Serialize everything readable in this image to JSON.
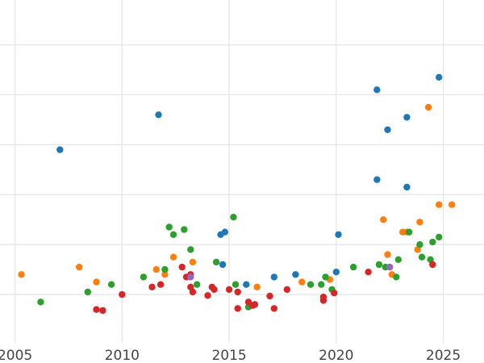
{
  "chart_data": {
    "type": "scatter",
    "title": "",
    "xlabel": "",
    "ylabel": "",
    "xlim": [
      2004.3,
      2026.9
    ],
    "ylim": [
      0,
      7
    ],
    "x_ticks": [
      2005,
      2010,
      2015,
      2020,
      2025
    ],
    "y_gridlines": [
      1,
      2,
      3,
      4,
      5,
      6,
      7
    ],
    "y_tick_labels_visible": false,
    "grid": true,
    "legend": "none",
    "series": [
      {
        "color": "#1f77b4",
        "points": [
          [
            2007.1,
            3.9
          ],
          [
            2011.7,
            4.6
          ],
          [
            2014.6,
            2.2
          ],
          [
            2014.8,
            2.25
          ],
          [
            2014.7,
            1.6
          ],
          [
            2015.8,
            1.2
          ],
          [
            2017.1,
            1.35
          ],
          [
            2018.1,
            1.4
          ],
          [
            2020.0,
            1.45
          ],
          [
            2020.1,
            2.2
          ],
          [
            2021.9,
            3.3
          ],
          [
            2021.9,
            5.1
          ],
          [
            2022.4,
            4.3
          ],
          [
            2023.3,
            3.15
          ],
          [
            2023.3,
            4.55
          ],
          [
            2024.8,
            5.35
          ]
        ]
      },
      {
        "color": "#ff7f0e",
        "points": [
          [
            2005.3,
            1.4
          ],
          [
            2008.0,
            1.55
          ],
          [
            2008.8,
            1.25
          ],
          [
            2011.6,
            1.5
          ],
          [
            2012.0,
            1.4
          ],
          [
            2012.4,
            1.75
          ],
          [
            2013.3,
            1.65
          ],
          [
            2016.3,
            1.15
          ],
          [
            2018.4,
            1.25
          ],
          [
            2019.7,
            1.3
          ],
          [
            2022.2,
            2.5
          ],
          [
            2022.4,
            1.8
          ],
          [
            2022.6,
            1.4
          ],
          [
            2023.1,
            2.25
          ],
          [
            2023.3,
            2.25
          ],
          [
            2023.8,
            1.9
          ],
          [
            2023.9,
            2.45
          ],
          [
            2024.3,
            4.75
          ],
          [
            2024.8,
            2.8
          ],
          [
            2025.4,
            2.8
          ]
        ]
      },
      {
        "color": "#2ca02c",
        "points": [
          [
            2006.2,
            0.85
          ],
          [
            2008.4,
            1.05
          ],
          [
            2009.5,
            1.2
          ],
          [
            2011.0,
            1.35
          ],
          [
            2012.0,
            1.5
          ],
          [
            2012.2,
            2.35
          ],
          [
            2012.4,
            2.2
          ],
          [
            2012.9,
            2.3
          ],
          [
            2013.2,
            1.9
          ],
          [
            2013.5,
            1.2
          ],
          [
            2014.4,
            1.65
          ],
          [
            2015.2,
            2.55
          ],
          [
            2015.3,
            1.2
          ],
          [
            2015.9,
            0.75
          ],
          [
            2018.8,
            1.2
          ],
          [
            2019.3,
            1.2
          ],
          [
            2019.5,
            1.35
          ],
          [
            2019.8,
            1.1
          ],
          [
            2020.8,
            1.55
          ],
          [
            2022.0,
            1.6
          ],
          [
            2022.3,
            1.55
          ],
          [
            2022.8,
            1.35
          ],
          [
            2022.9,
            1.7
          ],
          [
            2023.4,
            2.25
          ],
          [
            2023.9,
            2.0
          ],
          [
            2024.0,
            1.75
          ],
          [
            2024.4,
            1.7
          ],
          [
            2024.5,
            2.05
          ],
          [
            2024.8,
            2.15
          ]
        ]
      },
      {
        "color": "#d62728",
        "points": [
          [
            2008.8,
            0.7
          ],
          [
            2009.1,
            0.68
          ],
          [
            2010.0,
            1.0
          ],
          [
            2011.4,
            1.15
          ],
          [
            2011.8,
            1.2
          ],
          [
            2012.8,
            1.55
          ],
          [
            2013.0,
            1.35
          ],
          [
            2013.2,
            1.4
          ],
          [
            2013.2,
            1.15
          ],
          [
            2013.3,
            1.05
          ],
          [
            2014.0,
            0.98
          ],
          [
            2014.2,
            1.15
          ],
          [
            2014.3,
            1.1
          ],
          [
            2015.0,
            1.1
          ],
          [
            2015.4,
            1.05
          ],
          [
            2015.4,
            0.72
          ],
          [
            2015.9,
            0.85
          ],
          [
            2016.1,
            0.78
          ],
          [
            2016.2,
            0.8
          ],
          [
            2016.9,
            0.97
          ],
          [
            2017.1,
            0.72
          ],
          [
            2017.7,
            1.1
          ],
          [
            2019.4,
            0.95
          ],
          [
            2019.4,
            0.88
          ],
          [
            2019.9,
            1.03
          ],
          [
            2021.5,
            1.45
          ],
          [
            2024.5,
            1.6
          ]
        ]
      },
      {
        "color": "#9467bd",
        "points": [
          [
            2013.2,
            1.35
          ],
          [
            2022.5,
            1.55
          ]
        ]
      }
    ]
  }
}
